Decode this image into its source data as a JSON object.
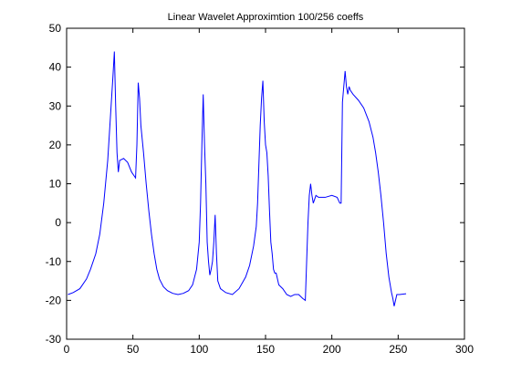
{
  "chart_data": {
    "type": "line",
    "title": "Linear Wavelet Approximtion 100/256 coeffs",
    "xlabel": "",
    "ylabel": "",
    "xlim": [
      0,
      300
    ],
    "ylim": [
      -30,
      50
    ],
    "xticks": [
      0,
      50,
      100,
      150,
      200,
      250,
      300
    ],
    "yticks": [
      -30,
      -20,
      -10,
      0,
      10,
      20,
      30,
      40,
      50
    ],
    "grid": false,
    "legend": "none",
    "series": [
      {
        "color": "#0000ff",
        "points": [
          [
            1,
            -18.5
          ],
          [
            5,
            -18
          ],
          [
            10,
            -17
          ],
          [
            15,
            -14.5
          ],
          [
            18,
            -12
          ],
          [
            22,
            -8
          ],
          [
            25,
            -3
          ],
          [
            28,
            5
          ],
          [
            31,
            16
          ],
          [
            33,
            27
          ],
          [
            35,
            38
          ],
          [
            36,
            44
          ],
          [
            37,
            30
          ],
          [
            38,
            18
          ],
          [
            39,
            13
          ],
          [
            40,
            16
          ],
          [
            43,
            16.5
          ],
          [
            46,
            15.5
          ],
          [
            49,
            13
          ],
          [
            51,
            12
          ],
          [
            52,
            11.5
          ],
          [
            53,
            20
          ],
          [
            54,
            36
          ],
          [
            55,
            32
          ],
          [
            56,
            25
          ],
          [
            58,
            18
          ],
          [
            60,
            10
          ],
          [
            62,
            3
          ],
          [
            64,
            -3
          ],
          [
            66,
            -8
          ],
          [
            68,
            -12
          ],
          [
            70,
            -14.5
          ],
          [
            73,
            -16.5
          ],
          [
            76,
            -17.5
          ],
          [
            80,
            -18.2
          ],
          [
            84,
            -18.5
          ],
          [
            88,
            -18.2
          ],
          [
            92,
            -17.5
          ],
          [
            95,
            -16
          ],
          [
            98,
            -12
          ],
          [
            100,
            -5
          ],
          [
            101,
            5
          ],
          [
            102,
            20
          ],
          [
            103,
            33
          ],
          [
            104,
            20
          ],
          [
            105,
            10
          ],
          [
            106,
            -5
          ],
          [
            107,
            -10
          ],
          [
            108,
            -13.5
          ],
          [
            109,
            -12
          ],
          [
            110,
            -10
          ],
          [
            111,
            -5
          ],
          [
            112,
            2
          ],
          [
            113,
            -8
          ],
          [
            114,
            -15
          ],
          [
            116,
            -17
          ],
          [
            120,
            -18
          ],
          [
            125,
            -18.5
          ],
          [
            130,
            -17
          ],
          [
            135,
            -14
          ],
          [
            138,
            -11
          ],
          [
            141,
            -6
          ],
          [
            143,
            -1
          ],
          [
            144,
            5
          ],
          [
            145,
            15
          ],
          [
            146,
            25
          ],
          [
            147,
            32
          ],
          [
            148,
            36.5
          ],
          [
            149,
            26
          ],
          [
            150,
            20
          ],
          [
            151,
            18
          ],
          [
            152,
            12
          ],
          [
            153,
            3
          ],
          [
            154,
            -5
          ],
          [
            155,
            -8
          ],
          [
            156,
            -12
          ],
          [
            157,
            -13
          ],
          [
            158,
            -13
          ],
          [
            159,
            -14.5
          ],
          [
            160,
            -16
          ],
          [
            163,
            -17
          ],
          [
            166,
            -18.5
          ],
          [
            169,
            -19
          ],
          [
            172,
            -18.5
          ],
          [
            175,
            -18.5
          ],
          [
            178,
            -19.5
          ],
          [
            180,
            -20
          ],
          [
            181,
            -10
          ],
          [
            182,
            0
          ],
          [
            183,
            7
          ],
          [
            184,
            10
          ],
          [
            185,
            7
          ],
          [
            186,
            5
          ],
          [
            188,
            7
          ],
          [
            190,
            6.5
          ],
          [
            195,
            6.5
          ],
          [
            200,
            7
          ],
          [
            204,
            6.5
          ],
          [
            206,
            5
          ],
          [
            207,
            5
          ],
          [
            208,
            31
          ],
          [
            210,
            39
          ],
          [
            211,
            35
          ],
          [
            212,
            33
          ],
          [
            213,
            35
          ],
          [
            214,
            34
          ],
          [
            216,
            33
          ],
          [
            220,
            31.5
          ],
          [
            224,
            29.5
          ],
          [
            228,
            26
          ],
          [
            231,
            22
          ],
          [
            233,
            18
          ],
          [
            235,
            13
          ],
          [
            237,
            7
          ],
          [
            239,
            0
          ],
          [
            241,
            -8
          ],
          [
            243,
            -14
          ],
          [
            245,
            -18
          ],
          [
            246,
            -19.5
          ],
          [
            247,
            -21.5
          ],
          [
            248,
            -20
          ],
          [
            249,
            -18.5
          ],
          [
            251,
            -18.5
          ],
          [
            256,
            -18.3
          ]
        ]
      }
    ]
  }
}
